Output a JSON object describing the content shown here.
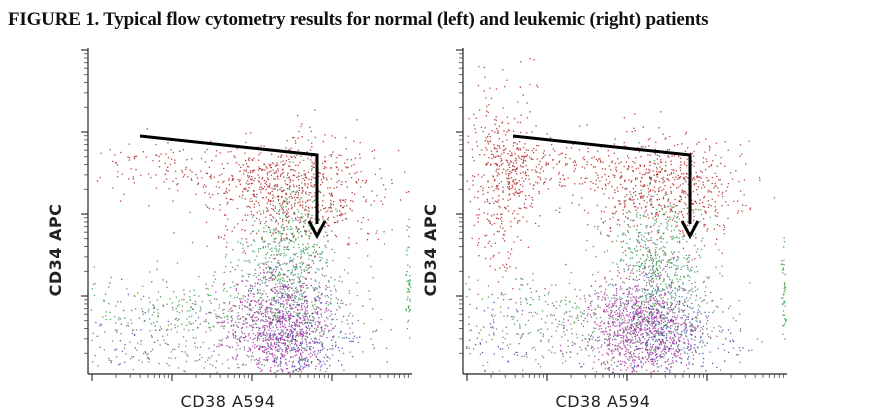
{
  "figure": {
    "title": "FIGURE 1. Typical flow cytometry results for normal (left) and leukemic (right) patients"
  },
  "colors": {
    "blast_population": "#b22222",
    "myeloid_population": "#2e9b3a",
    "teal_population": "#2f8f8f",
    "monocyte_population": "#b02aa8",
    "lymphoid_population": "#3a3fb0",
    "gray_events": "#6b6b6b",
    "arrow": "#000000"
  },
  "chart_data": [
    {
      "type": "scatter",
      "panel": "normal",
      "xlabel": "CD38  A594",
      "ylabel": "CD34  APC",
      "xscale": "log",
      "yscale": "log",
      "grid": false,
      "legend": "none",
      "annotation": "arrow",
      "populations": [
        {
          "color": "blast_population",
          "relative_density": "high",
          "region": "upper-right"
        },
        {
          "color": "myeloid_population",
          "relative_density": "medium",
          "region": "middle-right and lower-middle"
        },
        {
          "color": "monocyte_population",
          "relative_density": "high",
          "region": "lower-right"
        },
        {
          "color": "lymphoid_population",
          "relative_density": "low",
          "region": "lower"
        },
        {
          "color": "gray_events",
          "relative_density": "medium",
          "region": "lower"
        }
      ]
    },
    {
      "type": "scatter",
      "panel": "leukemic",
      "xlabel": "CD38  A594",
      "ylabel": "CD34  APC",
      "xscale": "log",
      "yscale": "log",
      "grid": false,
      "legend": "none",
      "annotation": "arrow",
      "populations": [
        {
          "color": "blast_population",
          "relative_density": "high",
          "region": "upper-right and upper-left"
        },
        {
          "color": "myeloid_population",
          "relative_density": "medium",
          "region": "middle-right and lower-middle"
        },
        {
          "color": "monocyte_population",
          "relative_density": "high",
          "region": "lower-right"
        },
        {
          "color": "lymphoid_population",
          "relative_density": "low",
          "region": "lower"
        },
        {
          "color": "gray_events",
          "relative_density": "medium",
          "region": "lower"
        }
      ]
    }
  ]
}
